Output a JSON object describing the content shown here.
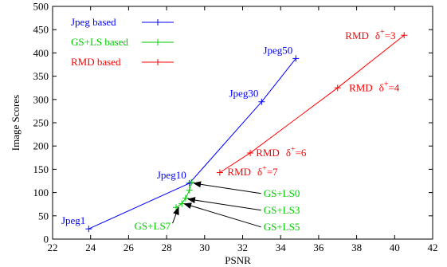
{
  "chart_data": {
    "type": "line",
    "xlabel": "PSNR",
    "ylabel": "Image Scores",
    "xlim": [
      22,
      42
    ],
    "ylim": [
      0,
      500
    ],
    "xticks": [
      22,
      24,
      26,
      28,
      30,
      32,
      34,
      36,
      38,
      40,
      42
    ],
    "yticks": [
      0,
      50,
      100,
      150,
      200,
      250,
      300,
      350,
      400,
      450,
      500
    ],
    "grid": false,
    "legend_position": "top-left",
    "series": [
      {
        "name": "Jpeg based",
        "color": "#0000ff",
        "points": [
          {
            "x": 23.9,
            "y": 22
          },
          {
            "x": 29.2,
            "y": 120
          },
          {
            "x": 33.0,
            "y": 295
          },
          {
            "x": 34.8,
            "y": 388
          }
        ]
      },
      {
        "name": "GS+LS based",
        "color": "#00cc00",
        "points": [
          {
            "x": 29.3,
            "y": 122
          },
          {
            "x": 29.2,
            "y": 105
          },
          {
            "x": 29.0,
            "y": 88
          },
          {
            "x": 28.8,
            "y": 76
          },
          {
            "x": 28.5,
            "y": 68
          }
        ]
      },
      {
        "name": "RMD based",
        "color": "#ff0000",
        "points": [
          {
            "x": 30.8,
            "y": 143
          },
          {
            "x": 32.4,
            "y": 185
          },
          {
            "x": 37.0,
            "y": 325
          },
          {
            "x": 40.5,
            "y": 438
          }
        ]
      }
    ],
    "annotations": [
      {
        "id": "jpeg1",
        "label": "Jpeg1",
        "color": "#0000ff",
        "x": 23.9,
        "y": 22,
        "anchor": "end"
      },
      {
        "id": "jpeg10",
        "label": "Jpeg10",
        "color": "#0000ff",
        "x": 29.2,
        "y": 120,
        "anchor": "end"
      },
      {
        "id": "jpeg30",
        "label": "Jpeg30",
        "color": "#0000ff",
        "x": 33.0,
        "y": 295,
        "anchor": "end"
      },
      {
        "id": "jpeg50",
        "label": "Jpeg50",
        "color": "#0000ff",
        "x": 34.8,
        "y": 388,
        "anchor": "end"
      }
    ],
    "rmd_labels": [
      {
        "id": "rmd3",
        "base": "RMD",
        "sym": "δ",
        "sup": "+",
        "val": "=3",
        "x": 37.4,
        "y": 430
      },
      {
        "id": "rmd4",
        "base": "RMD",
        "sym": "δ",
        "sup": "+",
        "val": "=4",
        "x": 37.6,
        "y": 318
      },
      {
        "id": "rmd6",
        "base": "RMD",
        "sym": "δ",
        "sup": "+",
        "val": "=6",
        "x": 32.7,
        "y": 178
      },
      {
        "id": "rmd7",
        "base": "RMD",
        "sym": "δ",
        "sup": "+",
        "val": "=7",
        "x": 31.2,
        "y": 137
      }
    ],
    "gs_labels": [
      {
        "id": "gs0",
        "label": "GS+LS0",
        "x": 33.1,
        "y": 98,
        "ax": 29.3,
        "ay": 120
      },
      {
        "id": "gs3",
        "label": "GS+LS3",
        "x": 33.1,
        "y": 62,
        "ax": 29.0,
        "ay": 86
      },
      {
        "id": "gs5",
        "label": "GS+LS5",
        "x": 33.1,
        "y": 26,
        "ax": 28.8,
        "ay": 76
      },
      {
        "id": "gs7",
        "label": "GS+LS7",
        "x": 26.3,
        "y": 27,
        "ax": 28.5,
        "ay": 68
      }
    ]
  }
}
